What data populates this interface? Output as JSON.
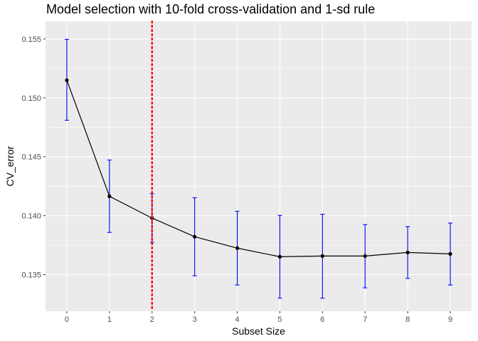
{
  "chart_data": {
    "type": "line",
    "title": "Model selection with 10-fold cross-validation and 1-sd rule",
    "xlabel": "Subset Size",
    "ylabel": "CV_error",
    "x": [
      0,
      1,
      2,
      3,
      4,
      5,
      6,
      7,
      8,
      9
    ],
    "series": [
      {
        "values": [
          0.1515,
          0.14165,
          0.1398,
          0.13822,
          0.13725,
          0.13652,
          0.13658,
          0.13658,
          0.13688,
          0.13676
        ],
        "lower": [
          0.1481,
          0.13858,
          0.13773,
          0.1349,
          0.13412,
          0.133,
          0.133,
          0.13388,
          0.13468,
          0.13412
        ],
        "upper": [
          0.15497,
          0.14473,
          0.14187,
          0.14153,
          0.14038,
          0.14003,
          0.14013,
          0.13925,
          0.13908,
          0.13938
        ]
      }
    ],
    "reference_line": {
      "x": 2,
      "color": "#ff0000",
      "style": "dotted"
    },
    "xlim": [
      -0.5,
      9.5
    ],
    "ylim": [
      0.1319,
      0.1565
    ],
    "x_ticks": [
      0,
      1,
      2,
      3,
      4,
      5,
      6,
      7,
      8,
      9
    ],
    "y_ticks": [
      0.135,
      0.14,
      0.145,
      0.15,
      0.155
    ],
    "x_tick_labels": [
      "0",
      "1",
      "2",
      "3",
      "4",
      "5",
      "6",
      "7",
      "8",
      "9"
    ],
    "y_tick_labels": [
      "0.135",
      "0.140",
      "0.145",
      "0.150",
      "0.155"
    ],
    "grid": true,
    "colors": {
      "panel": "#ebebeb",
      "grid": "#ffffff",
      "line": "#000000",
      "error_bar": "#0000ff"
    }
  }
}
